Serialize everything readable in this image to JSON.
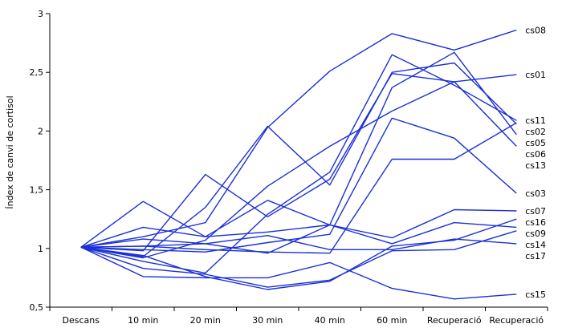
{
  "chart_data": {
    "type": "line",
    "ylabel": "Índex de canvi de cortisol",
    "xlabel": "",
    "categories": [
      "Descans",
      "10 min",
      "20 min",
      "30 min",
      "40 min",
      "60 min",
      "Recuperació",
      "Recuperació"
    ],
    "ylim": [
      0.5,
      3
    ],
    "yticks": [
      "0,5",
      "1",
      "1,5",
      "2",
      "2,5",
      "3"
    ],
    "line_color": "#1a2fd6",
    "series": [
      {
        "name": "cs08",
        "values": [
          1.01,
          1.1,
          1.22,
          2.03,
          2.51,
          2.83,
          2.69,
          2.86
        ]
      },
      {
        "name": "cs01",
        "values": [
          1.01,
          0.92,
          1.07,
          1.53,
          1.87,
          2.17,
          2.42,
          2.48
        ]
      },
      {
        "name": "cs11",
        "values": [
          1.01,
          0.89,
          0.79,
          1.29,
          1.65,
          2.65,
          2.39,
          2.09
        ]
      },
      {
        "name": "cs05",
        "values": [
          1.01,
          0.93,
          1.35,
          2.04,
          1.54,
          2.5,
          2.58,
          2.06
        ]
      },
      {
        "name": "cs06",
        "values": [
          1.01,
          1.08,
          1.04,
          0.96,
          1.2,
          2.37,
          2.67,
          1.97
        ]
      },
      {
        "name": "cs13",
        "values": [
          1.01,
          0.98,
          1.63,
          1.27,
          1.59,
          2.49,
          2.42,
          1.87
        ]
      },
      {
        "name": "cs03",
        "values": [
          1.01,
          0.99,
          0.97,
          1.05,
          1.12,
          2.11,
          1.94,
          1.47
        ]
      },
      {
        "name": "cs02",
        "values": [
          1.01,
          1.02,
          0.99,
          0.97,
          0.96,
          1.76,
          1.76,
          2.07
        ]
      },
      {
        "name": "cs07",
        "values": [
          1.01,
          1.4,
          1.1,
          1.41,
          1.2,
          1.09,
          1.33,
          1.32
        ]
      },
      {
        "name": "cs09",
        "values": [
          1.01,
          1.18,
          1.1,
          1.14,
          1.2,
          1.04,
          1.22,
          1.18
        ]
      },
      {
        "name": "cs17",
        "values": [
          1.01,
          1.02,
          1.04,
          1.11,
          0.99,
          0.99,
          1.08,
          1.04
        ]
      },
      {
        "name": "cs16",
        "values": [
          1.01,
          0.94,
          0.76,
          0.65,
          0.72,
          1.02,
          1.07,
          1.25
        ]
      },
      {
        "name": "cs14",
        "values": [
          1.01,
          0.83,
          0.78,
          0.67,
          0.73,
          0.98,
          0.99,
          1.15
        ]
      },
      {
        "name": "cs15",
        "values": [
          1.01,
          0.76,
          0.75,
          0.75,
          0.88,
          0.66,
          0.57,
          0.61
        ]
      }
    ],
    "label_order": [
      "cs08",
      "cs01",
      "cs11",
      "cs05",
      "cs06",
      "cs13",
      "cs03",
      "cs02",
      "cs07",
      "cs09",
      "cs17",
      "cs16",
      "cs14",
      "cs15"
    ]
  }
}
